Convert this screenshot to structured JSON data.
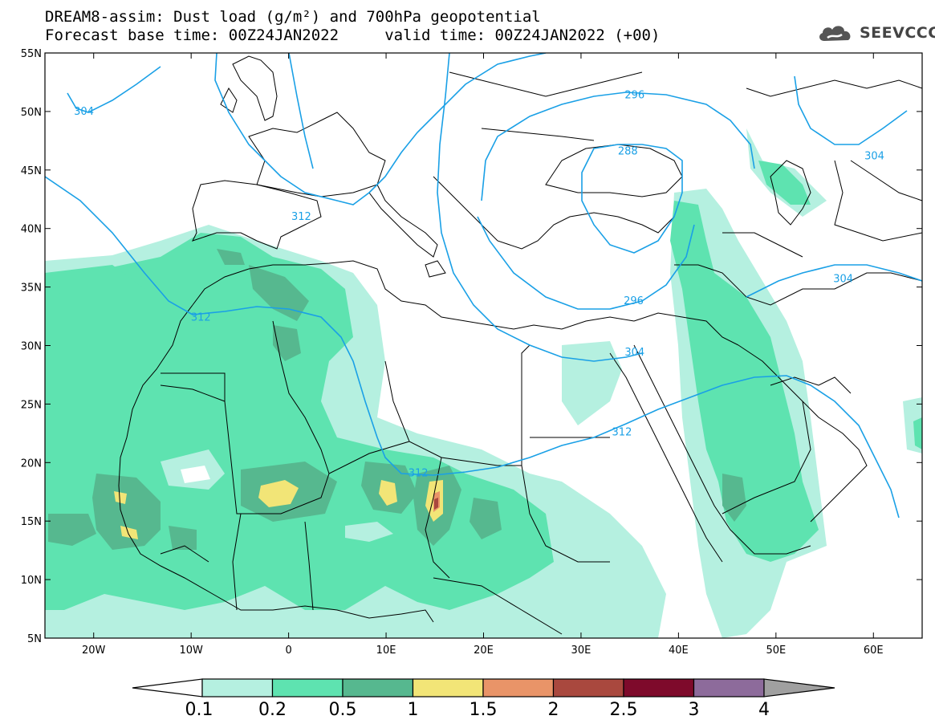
{
  "header": {
    "title_line1": "DREAM8-assim: Dust load (g/m²) and 700hPa geopotential",
    "title_line2": "Forecast base time: 00Z24JAN2022     valid time: 00Z24JAN2022 (+00)",
    "logo_text": "SEEVCCC",
    "logo_icon": "cloud-icon"
  },
  "map": {
    "projection": "lat-lon",
    "lon_range": [
      -25,
      65
    ],
    "lat_range": [
      5,
      55
    ],
    "lat_ticks": [
      {
        "value": 55,
        "label": "55N"
      },
      {
        "value": 50,
        "label": "50N"
      },
      {
        "value": 45,
        "label": "45N"
      },
      {
        "value": 40,
        "label": "40N"
      },
      {
        "value": 35,
        "label": "35N"
      },
      {
        "value": 30,
        "label": "30N"
      },
      {
        "value": 25,
        "label": "25N"
      },
      {
        "value": 20,
        "label": "20N"
      },
      {
        "value": 15,
        "label": "15N"
      },
      {
        "value": 10,
        "label": "10N"
      },
      {
        "value": 5,
        "label": "5N"
      }
    ],
    "lon_ticks": [
      {
        "value": -20,
        "label": "20W"
      },
      {
        "value": -10,
        "label": "10W"
      },
      {
        "value": 0,
        "label": "0"
      },
      {
        "value": 10,
        "label": "10E"
      },
      {
        "value": 20,
        "label": "20E"
      },
      {
        "value": 30,
        "label": "30E"
      },
      {
        "value": 40,
        "label": "40E"
      },
      {
        "value": 50,
        "label": "50E"
      },
      {
        "value": 60,
        "label": "60E"
      }
    ],
    "contour_color": "#1aa0e6",
    "contour_labels": [
      {
        "text": "304",
        "lon": -21,
        "lat": 50
      },
      {
        "text": "312",
        "lon": 1.3,
        "lat": 41
      },
      {
        "text": "312",
        "lon": -9,
        "lat": 32.4
      },
      {
        "text": "312",
        "lon": 13.3,
        "lat": 19.1
      },
      {
        "text": "312",
        "lon": 34.2,
        "lat": 22.6
      },
      {
        "text": "296",
        "lon": 35.5,
        "lat": 51.4
      },
      {
        "text": "288",
        "lon": 34.8,
        "lat": 46.6
      },
      {
        "text": "296",
        "lon": 35.4,
        "lat": 33.8
      },
      {
        "text": "304",
        "lon": 35.5,
        "lat": 29.4
      },
      {
        "text": "304",
        "lon": 60.1,
        "lat": 46.2
      },
      {
        "text": "304",
        "lon": 56.9,
        "lat": 35.7
      }
    ]
  },
  "colorbar": {
    "levels": [
      "0.1",
      "0.2",
      "0.5",
      "1",
      "1.5",
      "2",
      "2.5",
      "3",
      "4"
    ],
    "colors": [
      "#b5f0e0",
      "#5ee3b0",
      "#56b88f",
      "#f2e577",
      "#e99468",
      "#a9483e",
      "#7e0a2b",
      "#8d6b9b"
    ],
    "under_color": "#ffffff",
    "over_color": "#a0a0a0"
  }
}
